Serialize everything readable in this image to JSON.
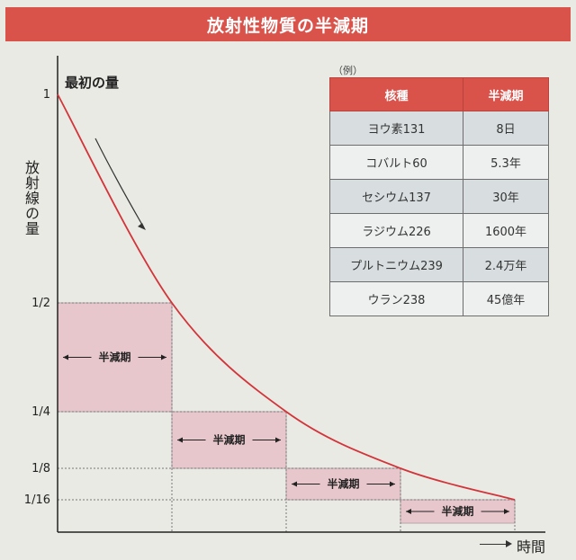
{
  "title": "放射性物質の半減期",
  "chart_data": {
    "type": "line",
    "ylabel": "放射線の量",
    "xlabel": "時間",
    "annotation": "最初の量",
    "y_ticks": [
      {
        "label": "1",
        "value": 1
      },
      {
        "label": "1/2",
        "value": 0.5
      },
      {
        "label": "1/4",
        "value": 0.25
      },
      {
        "label": "1/8",
        "value": 0.125
      },
      {
        "label": "1/16",
        "value": 0.0625
      }
    ],
    "series": [
      {
        "x": [
          0,
          1,
          2,
          3,
          4
        ],
        "y": [
          1,
          0.5,
          0.25,
          0.125,
          0.0625
        ]
      }
    ],
    "half_life_label": "半減期",
    "half_life_count": 4,
    "curve_color": "#d3343a",
    "shade_color": "#e8c7cc"
  },
  "table": {
    "caption": "（例）",
    "headers": [
      "核種",
      "半減期"
    ],
    "rows": [
      [
        "ヨウ素131",
        "8日"
      ],
      [
        "コバルト60",
        "5.3年"
      ],
      [
        "セシウム137",
        "30年"
      ],
      [
        "ラジウム226",
        "1600年"
      ],
      [
        "プルトニウム239",
        "2.4万年"
      ],
      [
        "ウラン238",
        "45億年"
      ]
    ]
  }
}
